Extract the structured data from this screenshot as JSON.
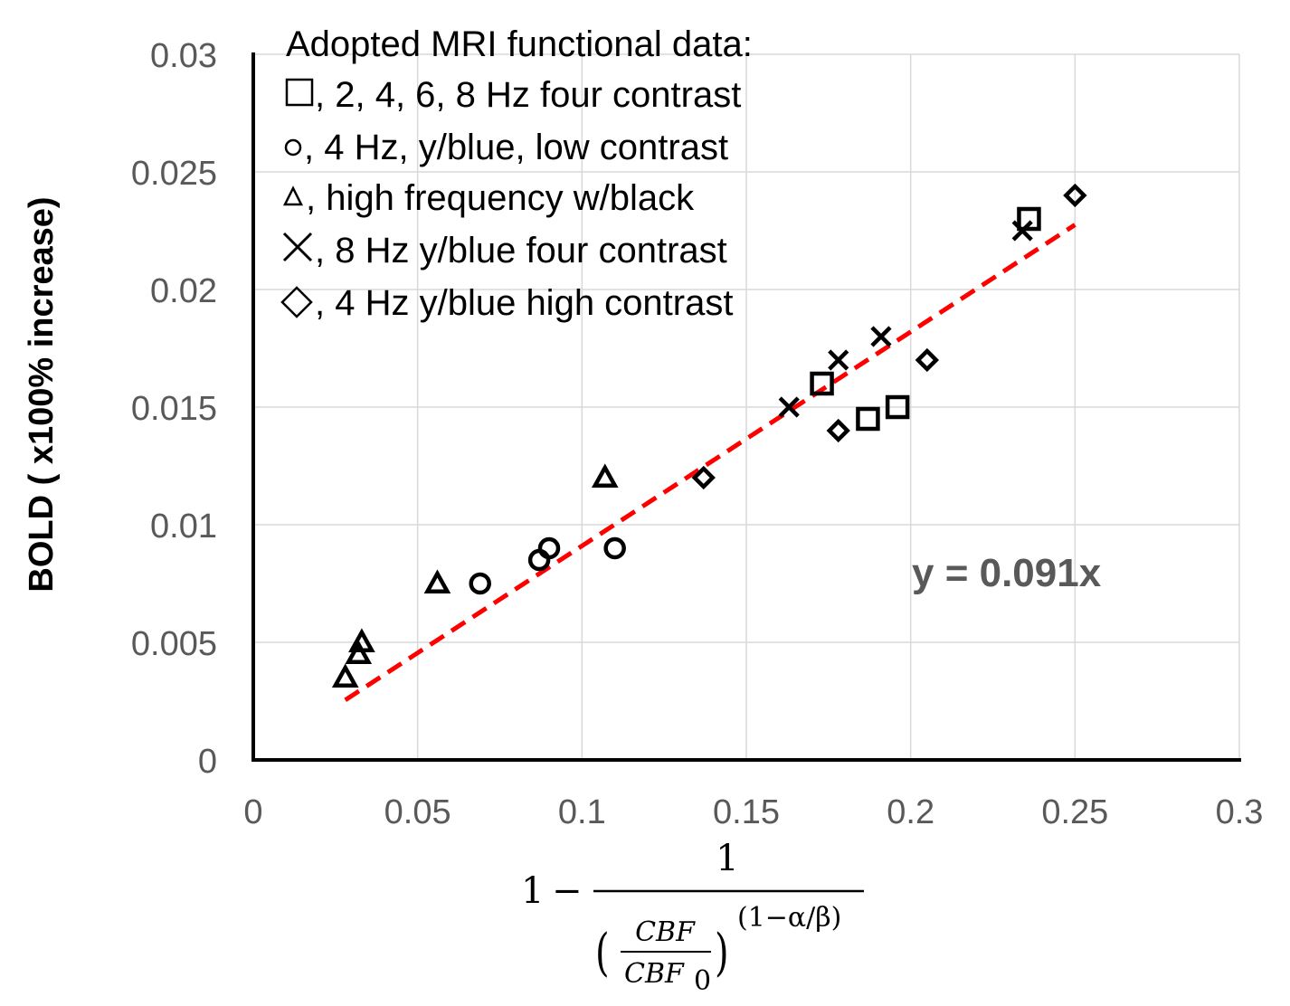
{
  "chart_data": {
    "type": "scatter",
    "ylabel": "BOLD ( x100% increase)",
    "xlabel_formula": {
      "prefix": "1",
      "minus": "−",
      "numerator": "1",
      "frac_num": "CBF",
      "frac_den": "CBF",
      "frac_den_sub": "0",
      "exponent": "(1−α/β)"
    },
    "xlim": [
      0,
      0.3
    ],
    "ylim": [
      0,
      0.03
    ],
    "x_ticks": [
      "0",
      "0.05",
      "0.1",
      "0.15",
      "0.2",
      "0.25",
      "0.3"
    ],
    "y_ticks": [
      "0",
      "0.005",
      "0.01",
      "0.015",
      "0.02",
      "0.025",
      "0.03"
    ],
    "x_tick_values": [
      0,
      0.05,
      0.1,
      0.15,
      0.2,
      0.25,
      0.3
    ],
    "y_tick_values": [
      0,
      0.005,
      0.01,
      0.015,
      0.02,
      0.025,
      0.03
    ],
    "grid": true,
    "legend_title": "Adopted MRI functional data:",
    "series": [
      {
        "name": ", 2, 4, 6, 8 Hz four contrast",
        "marker": "square",
        "points": [
          [
            0.173,
            0.016
          ],
          [
            0.187,
            0.0145
          ],
          [
            0.196,
            0.015
          ],
          [
            0.236,
            0.023
          ]
        ]
      },
      {
        "name": ", 4 Hz, y/blue, low contrast",
        "marker": "circle",
        "points": [
          [
            0.069,
            0.0075
          ],
          [
            0.087,
            0.0085
          ],
          [
            0.09,
            0.009
          ],
          [
            0.11,
            0.009
          ]
        ]
      },
      {
        "name": ", high frequency w/black",
        "marker": "triangle",
        "points": [
          [
            0.028,
            0.0035
          ],
          [
            0.032,
            0.0045
          ],
          [
            0.033,
            0.005
          ],
          [
            0.056,
            0.0075
          ],
          [
            0.107,
            0.012
          ]
        ]
      },
      {
        "name": ", 8 Hz y/blue four contrast",
        "marker": "x",
        "points": [
          [
            0.163,
            0.015
          ],
          [
            0.178,
            0.017
          ],
          [
            0.191,
            0.018
          ],
          [
            0.234,
            0.0225
          ]
        ]
      },
      {
        "name": ", 4 Hz y/blue high contrast",
        "marker": "diamond",
        "points": [
          [
            0.137,
            0.012
          ],
          [
            0.178,
            0.014
          ],
          [
            0.205,
            0.017
          ],
          [
            0.25,
            0.024
          ]
        ]
      }
    ],
    "trendline": {
      "equation": "y = 0.091x",
      "slope": 0.091,
      "x_range": [
        0.028,
        0.25
      ],
      "color": "#ff0000"
    },
    "colors": {
      "tick_text": "#595959",
      "grid": "#d9d9d9",
      "axis": "#000000",
      "trend": "#ff0000"
    }
  }
}
